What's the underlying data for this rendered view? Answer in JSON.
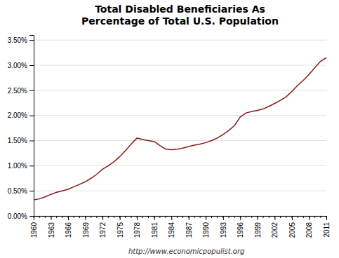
{
  "chart_data": {
    "type": "line",
    "title": "Total Disabled Beneficiaries As\nPercentage of Total U.S. Population",
    "annotations": [
      "http://www.economicpopulist.org"
    ],
    "color": "#8B1A1A",
    "x": [
      1960,
      1961,
      1962,
      1963,
      1964,
      1965,
      1966,
      1967,
      1968,
      1969,
      1970,
      1971,
      1972,
      1973,
      1974,
      1975,
      1976,
      1977,
      1978,
      1979,
      1980,
      1981,
      1982,
      1983,
      1984,
      1985,
      1986,
      1987,
      1988,
      1989,
      1990,
      1991,
      1992,
      1993,
      1994,
      1995,
      1996,
      1997,
      1998,
      1999,
      2000,
      2001,
      2002,
      2003,
      2004,
      2005,
      2006,
      2007,
      2008,
      2009,
      2010,
      2011
    ],
    "values": [
      0.0032,
      0.0034,
      0.0038,
      0.0043,
      0.0047,
      0.005,
      0.0053,
      0.0058,
      0.0063,
      0.0068,
      0.0075,
      0.0083,
      0.0093,
      0.01,
      0.0108,
      0.0118,
      0.013,
      0.0143,
      0.0155,
      0.0152,
      0.015,
      0.0148,
      0.014,
      0.0133,
      0.0132,
      0.0133,
      0.0135,
      0.0138,
      0.0141,
      0.0143,
      0.0146,
      0.015,
      0.0155,
      0.0162,
      0.017,
      0.018,
      0.0197,
      0.0205,
      0.0208,
      0.021,
      0.0213,
      0.0218,
      0.0224,
      0.023,
      0.0237,
      0.0248,
      0.026,
      0.027,
      0.0282,
      0.0295,
      0.0308,
      0.0315
    ],
    "xlim": [
      1960,
      2011
    ],
    "xticks": [
      1960,
      1963,
      1966,
      1969,
      1972,
      1975,
      1978,
      1981,
      1984,
      1987,
      1990,
      1993,
      1996,
      1999,
      2002,
      2005,
      2008,
      2011
    ],
    "ylim": [
      0.0,
      0.036
    ],
    "yticks": [
      {
        "value": 0.0,
        "label": "0.00%"
      },
      {
        "value": 0.005,
        "label": "0.50%"
      },
      {
        "value": 0.01,
        "label": "1.00%"
      },
      {
        "value": 0.015,
        "label": "1.50%"
      },
      {
        "value": 0.02,
        "label": "2.00%"
      },
      {
        "value": 0.025,
        "label": "2.50%"
      },
      {
        "value": 0.03,
        "label": "3.00%"
      },
      {
        "value": 0.035,
        "label": "3.50%"
      }
    ],
    "grid": true
  }
}
